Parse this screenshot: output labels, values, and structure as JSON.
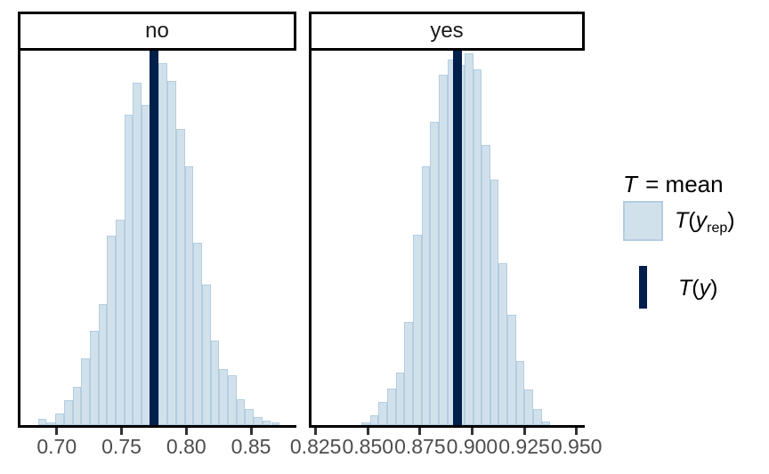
{
  "chart_data": {
    "type": "histogram",
    "title": "",
    "stat_name": "mean",
    "legend_position": "right",
    "grid": false,
    "colors": {
      "hist_fill": "#d1e1ec",
      "hist_stroke": "#b3cde0",
      "t_line": "#011f4b",
      "axis": "#000000",
      "tick_label": "#4d4d4d"
    },
    "legend": {
      "title_t": "T",
      "title_eq": " = ",
      "title_stat": "mean",
      "yrep_t": "T",
      "yrep_open": "(",
      "yrep_y": "y",
      "yrep_sub": "rep",
      "yrep_close": ")",
      "y_t": "T",
      "y_open": "(",
      "y_y": "y",
      "y_close": ")"
    },
    "facets": [
      {
        "label": "no",
        "x_range": [
          0.672,
          0.885
        ],
        "x_ticks": [
          {
            "value": 0.7,
            "label": "0.70"
          },
          {
            "value": 0.75,
            "label": "0.75"
          },
          {
            "value": 0.8,
            "label": "0.80"
          },
          {
            "value": 0.85,
            "label": "0.85"
          }
        ],
        "bin_start": 0.6856,
        "bin_width": 0.00666,
        "bar_heights": [
          0.017,
          0.007,
          0.031,
          0.066,
          0.101,
          0.179,
          0.252,
          0.323,
          0.507,
          0.549,
          0.828,
          0.915,
          0.856,
          0.932,
          0.967,
          0.92,
          0.79,
          0.691,
          0.486,
          0.375,
          0.226,
          0.149,
          0.132,
          0.068,
          0.042,
          0.021,
          0.012,
          0.007
        ],
        "t_value": 0.775
      },
      {
        "label": "yes",
        "x_range": [
          0.823,
          0.954
        ],
        "x_ticks": [
          {
            "value": 0.825,
            "label": "0.825"
          },
          {
            "value": 0.85,
            "label": "0.850"
          },
          {
            "value": 0.875,
            "label": "0.875"
          },
          {
            "value": 0.9,
            "label": "0.900"
          },
          {
            "value": 0.925,
            "label": "0.925"
          },
          {
            "value": 0.95,
            "label": "0.950"
          }
        ],
        "bin_start": 0.8469,
        "bin_width": 0.00412,
        "bar_heights": [
          0.007,
          0.026,
          0.061,
          0.097,
          0.139,
          0.276,
          0.509,
          0.691,
          0.811,
          0.936,
          0.976,
          0.962,
          0.993,
          0.95,
          0.748,
          0.656,
          0.432,
          0.295,
          0.17,
          0.094,
          0.042,
          0.009
        ],
        "t_value": 0.893
      }
    ]
  }
}
